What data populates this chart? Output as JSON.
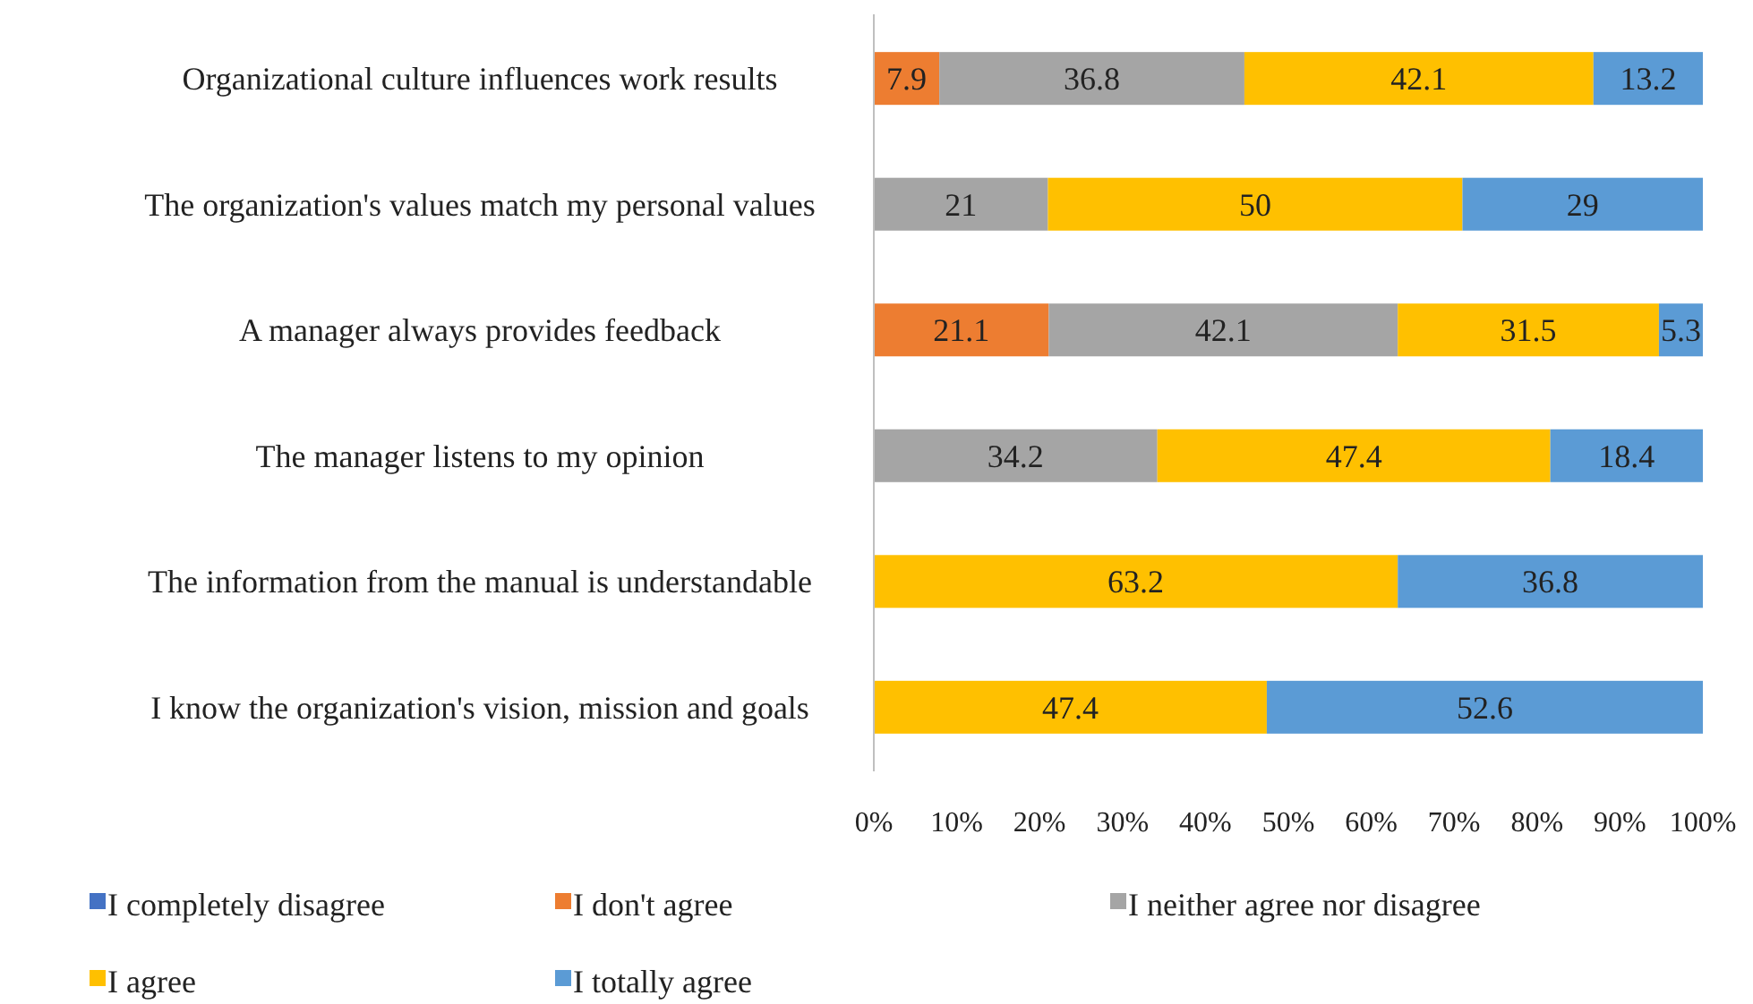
{
  "chart_data": {
    "type": "bar",
    "orientation": "horizontal",
    "stacked": true,
    "data_labels": true,
    "legend": "bottom",
    "grid": false,
    "categories": [
      "Organizational culture influences work results",
      "The organization's values match my personal values",
      "A manager always provides feedback",
      "The manager listens to my opinion",
      "The information from the manual is understandable",
      "I know the organization's vision, mission and goals"
    ],
    "xlim": [
      0,
      100
    ],
    "xticks": [
      {
        "value": 0,
        "label": "0%"
      },
      {
        "value": 10,
        "label": "10%"
      },
      {
        "value": 20,
        "label": "20%"
      },
      {
        "value": 30,
        "label": "30%"
      },
      {
        "value": 40,
        "label": "40%"
      },
      {
        "value": 50,
        "label": "50%"
      },
      {
        "value": 60,
        "label": "60%"
      },
      {
        "value": 70,
        "label": "70%"
      },
      {
        "value": 80,
        "label": "80%"
      },
      {
        "value": 90,
        "label": "90%"
      },
      {
        "value": 100,
        "label": "100%"
      }
    ],
    "series": [
      {
        "name": "I completely disagree",
        "color": "#4472c4",
        "values": [
          null,
          null,
          null,
          null,
          null,
          null
        ]
      },
      {
        "name": "I don't agree",
        "color": "#ed7d31",
        "values": [
          7.9,
          null,
          21.1,
          null,
          null,
          null
        ]
      },
      {
        "name": "I neither agree nor disagree",
        "color": "#a5a5a5",
        "values": [
          36.8,
          21,
          42.1,
          34.2,
          null,
          null
        ]
      },
      {
        "name": "I agree",
        "color": "#ffc000",
        "values": [
          42.1,
          50,
          31.5,
          47.4,
          63.2,
          47.4
        ]
      },
      {
        "name": "I totally agree",
        "color": "#5b9bd5",
        "values": [
          13.2,
          29,
          5.3,
          18.4,
          36.8,
          52.6
        ]
      }
    ]
  }
}
